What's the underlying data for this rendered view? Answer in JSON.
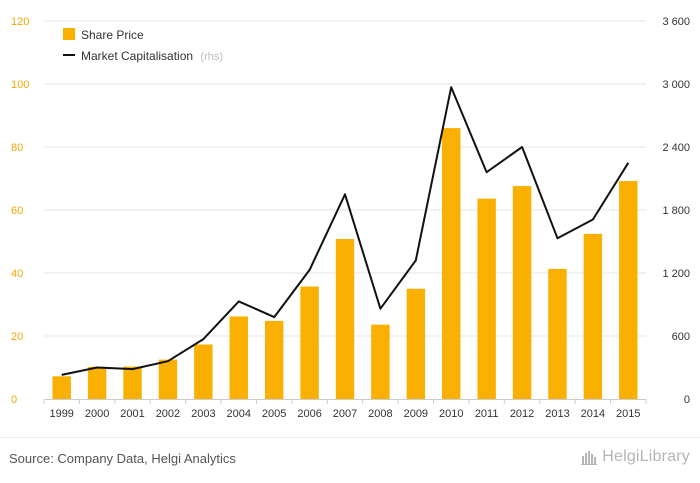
{
  "chart_data": {
    "type": "bar",
    "categories": [
      "1999",
      "2000",
      "2001",
      "2002",
      "2003",
      "2004",
      "2005",
      "2006",
      "2007",
      "2008",
      "2009",
      "2010",
      "2011",
      "2012",
      "2013",
      "2014",
      "2015"
    ],
    "series": [
      {
        "name": "Share Price",
        "type": "bar",
        "axis": "left",
        "color": "#f9b000",
        "values": [
          7.2,
          10.2,
          10.3,
          12.5,
          17.3,
          26.2,
          24.8,
          35.7,
          50.8,
          23.6,
          35.0,
          86.0,
          63.6,
          67.6,
          41.3,
          52.4,
          69.2
        ]
      },
      {
        "name": "Market Capitalisation",
        "type": "line",
        "axis": "right",
        "color": "#111111",
        "values": [
          230,
          300,
          285,
          360,
          570,
          930,
          780,
          1230,
          1950,
          860,
          1320,
          2970,
          2160,
          2400,
          1530,
          1710,
          2250
        ]
      }
    ],
    "legend": [
      {
        "label": "Share Price",
        "note": ""
      },
      {
        "label": "Market Capitalisation",
        "note": "(rhs)"
      }
    ],
    "legend_placement": "top-left",
    "ylim": [
      0,
      120
    ],
    "y_ticks": [
      "0",
      "20",
      "40",
      "60",
      "80",
      "100",
      "120"
    ],
    "y2lim": [
      0,
      3600
    ],
    "y2_ticks": [
      "0",
      "600",
      "1 200",
      "1 800",
      "2 400",
      "3 000",
      "3 600"
    ],
    "grid": true,
    "xlabel": "",
    "ylabel": "",
    "y2label": "",
    "title": ""
  },
  "footer": {
    "source": "Source: Company Data, Helgi Analytics",
    "brand": "HelgiLibrary"
  }
}
